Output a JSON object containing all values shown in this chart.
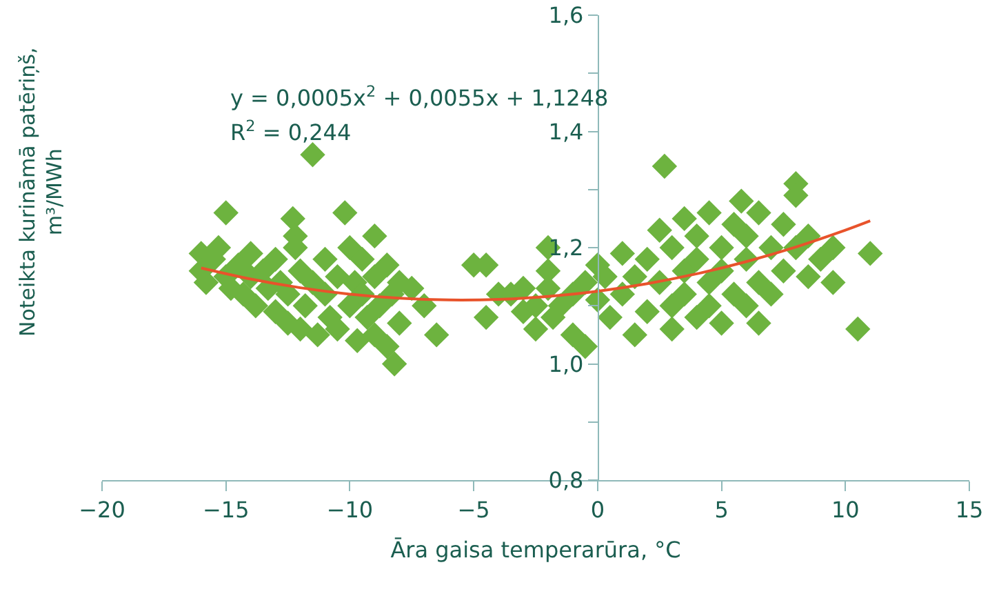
{
  "chart_data": {
    "type": "scatter",
    "xlabel": "Āra gaisa temperarūra, °C",
    "ylabel": "Noteikta kurināmā patēriņš, m³/MWh",
    "annotations": [
      "y = 0,0005x$^{2}$ + 0,0055x + 1,1248",
      "R$^{2}$ = 0,244"
    ],
    "xlim": [
      -20,
      15
    ],
    "xticks": [
      {
        "value": -20,
        "label": "−20"
      },
      {
        "value": -15,
        "label": "−15"
      },
      {
        "value": -10,
        "label": "−10"
      },
      {
        "value": -5,
        "label": "−5"
      },
      0,
      5,
      10,
      15
    ],
    "ylim": [
      0.8,
      1.6
    ],
    "yticks": [
      {
        "value": 0.8,
        "label": "0,8"
      },
      {
        "value": 0.9,
        "label": null
      },
      {
        "value": 1.0,
        "label": "1,0"
      },
      {
        "value": 1.1,
        "label": null
      },
      {
        "value": 1.2,
        "label": "1,2"
      },
      {
        "value": 1.3,
        "label": null
      },
      {
        "value": 1.4,
        "label": "1,4"
      },
      {
        "value": 1.5,
        "label": null
      },
      {
        "value": 1.6,
        "label": "1,6"
      }
    ],
    "grid": false,
    "series": [
      {
        "marker": "diamond",
        "color": "#6db33f",
        "x": [
          -16,
          -16,
          -15.8,
          -15.5,
          -15.3,
          -15,
          -15,
          -14.8,
          -14.5,
          -14.3,
          -14,
          -14,
          -13.8,
          -13.5,
          -13.3,
          -13,
          -13,
          -12.8,
          -12.5,
          -12.5,
          -12.3,
          -12.2,
          -12.2,
          -12,
          -12,
          -11.8,
          -11.5,
          -11.5,
          -11.3,
          -11,
          -11,
          -10.8,
          -10.5,
          -10.5,
          -10.2,
          -10,
          -10,
          -9.8,
          -9.7,
          -9.5,
          -9.5,
          -9.3,
          -9,
          -9,
          -9,
          -8.8,
          -8.5,
          -8.5,
          -8.3,
          -8.2,
          -8,
          -8,
          -7.5,
          -7,
          -6.5,
          -5,
          -4.5,
          -4.5,
          -4,
          -3.5,
          -3,
          -3,
          -2.5,
          -2.5,
          -2,
          -2,
          -2,
          -1.8,
          -1.5,
          -1,
          -1,
          -0.5,
          -0.5,
          0,
          0,
          0.3,
          0.5,
          1,
          1,
          1.5,
          1.5,
          2,
          2,
          2.5,
          2.5,
          2.7,
          3,
          3,
          3,
          3.5,
          3.5,
          3.5,
          4,
          4,
          4,
          4.5,
          4.5,
          4.5,
          5,
          5,
          5,
          5.5,
          5.5,
          5.8,
          6,
          6,
          6,
          6.5,
          6.5,
          6.5,
          7,
          7,
          7.5,
          7.5,
          8,
          8,
          8,
          8.5,
          8.5,
          9,
          9.5,
          9.5,
          10.5,
          11
        ],
        "values": [
          1.19,
          1.16,
          1.14,
          1.18,
          1.2,
          1.26,
          1.15,
          1.13,
          1.17,
          1.12,
          1.19,
          1.15,
          1.1,
          1.16,
          1.13,
          1.18,
          1.09,
          1.14,
          1.07,
          1.12,
          1.25,
          1.22,
          1.2,
          1.16,
          1.06,
          1.1,
          1.36,
          1.14,
          1.05,
          1.18,
          1.12,
          1.08,
          1.15,
          1.06,
          1.26,
          1.2,
          1.1,
          1.14,
          1.04,
          1.18,
          1.12,
          1.08,
          1.22,
          1.15,
          1.05,
          1.1,
          1.17,
          1.03,
          1.12,
          1.0,
          1.07,
          1.14,
          1.13,
          1.1,
          1.05,
          1.17,
          1.17,
          1.08,
          1.12,
          1.12,
          1.13,
          1.09,
          1.1,
          1.06,
          1.2,
          1.16,
          1.13,
          1.08,
          1.1,
          1.12,
          1.05,
          1.14,
          1.03,
          1.17,
          1.11,
          1.15,
          1.08,
          1.19,
          1.12,
          1.05,
          1.15,
          1.18,
          1.09,
          1.23,
          1.14,
          1.34,
          1.2,
          1.1,
          1.06,
          1.25,
          1.16,
          1.12,
          1.22,
          1.08,
          1.18,
          1.26,
          1.14,
          1.1,
          1.2,
          1.07,
          1.16,
          1.24,
          1.12,
          1.28,
          1.18,
          1.1,
          1.22,
          1.26,
          1.14,
          1.07,
          1.2,
          1.12,
          1.24,
          1.16,
          1.31,
          1.29,
          1.2,
          1.22,
          1.15,
          1.18,
          1.2,
          1.14,
          1.06,
          1.19
        ]
      },
      {
        "type": "line",
        "marker": "none",
        "color": "#e8532b",
        "x": [
          -16,
          -14,
          -12,
          -10,
          -8,
          -6,
          -4,
          -2,
          0,
          2,
          4,
          6,
          8,
          10,
          11
        ],
        "values": [
          1.165,
          1.146,
          1.131,
          1.12,
          1.113,
          1.11,
          1.111,
          1.116,
          1.125,
          1.138,
          1.155,
          1.176,
          1.201,
          1.23,
          1.246
        ]
      }
    ]
  }
}
